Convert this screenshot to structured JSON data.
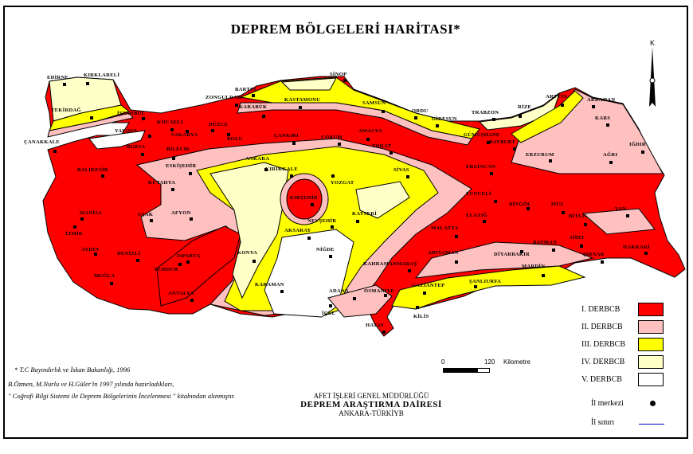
{
  "title": "DEPREM BÖLGELERİ HARİTASI*",
  "north_label": "K",
  "colors": {
    "zone1": "#ff0000",
    "zone2": "#ffc0c0",
    "zone3": "#ffff00",
    "zone4": "#ffffc8",
    "zone5": "#ffffff",
    "border": "#0000ff"
  },
  "legend": {
    "zones": [
      {
        "label": "I. DERBCB",
        "color": "#ff0000"
      },
      {
        "label": "II. DERBCB",
        "color": "#ffc0c0"
      },
      {
        "label": "III. DERBCB",
        "color": "#ffff00"
      },
      {
        "label": "IV. DERBCB",
        "color": "#ffffc8"
      },
      {
        "label": "V. DERBCB",
        "color": "#ffffff"
      }
    ],
    "center_label": "İl merkezi",
    "border_label": "İl sınırı"
  },
  "scale": {
    "start": "0",
    "end": "120",
    "unit": "Kilometre"
  },
  "notes": {
    "source": "* T.C Bayındırlık ve İskan Bakanlığı, 1996",
    "line1": "B.Özmen, M.Nurlu ve H.Güler'in 1997 yılında hazırladıkları,",
    "line2": "\" Coğrafi Bilgi Sistemi ile Deprem Bölgelerinin İncelenmesi \" kitabından alınmıştır."
  },
  "org": {
    "line1": "AFET İŞLERİ GENEL MÜDÜRLÜĞÜ",
    "line2": "DEPREM ARAŞTIRMA DAİRESİ",
    "line3": "ANKARA-TÜRKİYB"
  },
  "cities": [
    "EDİRNE",
    "KIRKLARELİ",
    "TEKİRDAĞ",
    "İSTANBUL",
    "YALOVA",
    "KOCAELİ",
    "SAKARYA",
    "DÜZCE",
    "BOLU",
    "ZONGULDAK",
    "BARTIN",
    "KARABÜK",
    "KASTAMONU",
    "SİNOP",
    "SAMSUN",
    "ORDU",
    "GİRESUN",
    "TRABZON",
    "RİZE",
    "ARTVİN",
    "ARDAHAN",
    "KARS",
    "IĞDIR",
    "AĞRI",
    "ERZURUM",
    "GÜMÜŞHANE",
    "BAYBURT",
    "ERZİNCAN",
    "ÇANAKKALE",
    "BALIKESİR",
    "BURSA",
    "BİLECİK",
    "ESKİŞEHİR",
    "KÜTAHYA",
    "ÇANKIRI",
    "ÇORUM",
    "AMASYA",
    "TOKAT",
    "ANKARA",
    "KIRIKKALE",
    "YOZGAT",
    "SİVAS",
    "KIRŞEHİR",
    "NEVŞEHİR",
    "KAYSERİ",
    "MANİSA",
    "İZMİR",
    "UŞAK",
    "AFYON",
    "AYDIN",
    "DENİZLİ",
    "ISPARTA",
    "BURDUR",
    "MUĞLA",
    "ANTALYA",
    "KONYA",
    "AKSARAY",
    "NİĞDE",
    "KARAMAN",
    "ADANA",
    "İÇEL",
    "OSMANİYE",
    "HATAY",
    "KİLİS",
    "GAZİANTEP",
    "ŞANLIURFA",
    "KAHRAMANMARAŞ",
    "ADIYAMAN",
    "MALATYA",
    "ELAZIĞ",
    "TUNCELİ",
    "BİNGÖL",
    "MUŞ",
    "BİTLİS",
    "VAN",
    "SİİRT",
    "BATMAN",
    "DİYARBAKIR",
    "MARDİN",
    "ŞIRNAK",
    "HAKKARİ"
  ]
}
